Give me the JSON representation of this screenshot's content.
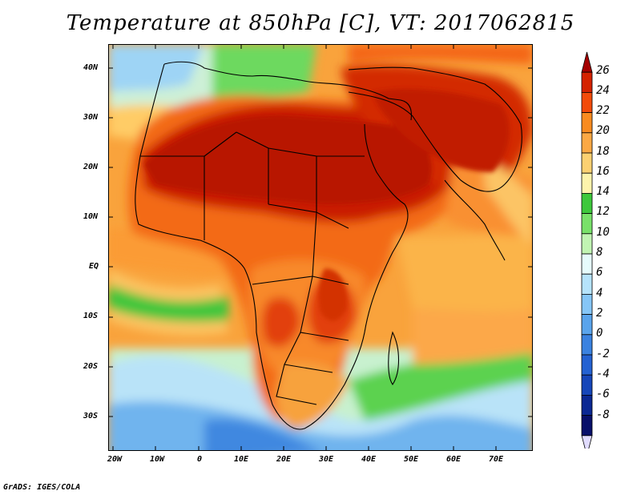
{
  "title": "Temperature at 850hPa [C], VT: 2017062815",
  "credit": "GrADS: IGES/COLA",
  "axes": {
    "y_ticks": [
      "40N",
      "30N",
      "20N",
      "10N",
      "EQ",
      "10S",
      "20S",
      "30S"
    ],
    "x_ticks": [
      "20W",
      "10W",
      "0",
      "10E",
      "20E",
      "30E",
      "40E",
      "50E",
      "60E",
      "70E"
    ]
  },
  "colorbar": {
    "labels": [
      "26",
      "24",
      "22",
      "20",
      "18",
      "16",
      "14",
      "12",
      "10",
      "8",
      "6",
      "4",
      "2",
      "0",
      "-2",
      "-4",
      "-6",
      "-8"
    ],
    "colors": [
      "#a50000",
      "#d42200",
      "#f24b0a",
      "#f98b20",
      "#fba844",
      "#fbd072",
      "#fdf3ac",
      "#3ec83c",
      "#79e16a",
      "#c1f4b3",
      "#e6fbfc",
      "#b6e3fb",
      "#86c6f7",
      "#5aa4ec",
      "#3b82e0",
      "#2462d2",
      "#1646b9",
      "#0b2893",
      "#08106a",
      "#e1dcff"
    ]
  },
  "legend_hidden": ""
}
